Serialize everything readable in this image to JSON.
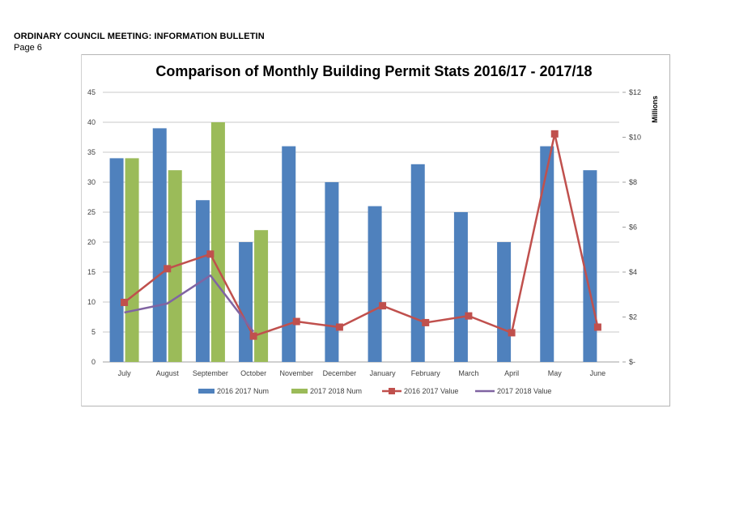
{
  "document": {
    "header": "ORDINARY COUNCIL MEETING: INFORMATION BULLETIN",
    "page": "Page 6"
  },
  "chart_data": {
    "type": "bar",
    "title": "Comparison of Monthly Building Permit Stats 2016/17 - 2017/18",
    "categories": [
      "July",
      "August",
      "September",
      "October",
      "November",
      "December",
      "January",
      "February",
      "March",
      "April",
      "May",
      "June"
    ],
    "y_left": {
      "ylim": [
        0,
        45
      ],
      "ticks": [
        0,
        5,
        10,
        15,
        20,
        25,
        30,
        35,
        40,
        45
      ],
      "tick_labels": [
        "0",
        "5",
        "10",
        "15",
        "20",
        "25",
        "30",
        "35",
        "40",
        "45"
      ]
    },
    "y_right": {
      "label": "Millions",
      "ylim": [
        0,
        12
      ],
      "ticks": [
        0,
        2,
        4,
        6,
        8,
        10,
        12
      ],
      "tick_labels": [
        "$-",
        "$2",
        "$4",
        "$6",
        "$8",
        "$10",
        "$12"
      ]
    },
    "grid": true,
    "legend_position": "bottom",
    "series": [
      {
        "name": "2016 2017 Num",
        "kind": "bar",
        "axis": "left",
        "color": "#4f81bd",
        "values": [
          34,
          39,
          27,
          20,
          36,
          30,
          26,
          33,
          25,
          20,
          36,
          32
        ]
      },
      {
        "name": "2017 2018 Num",
        "kind": "bar",
        "axis": "left",
        "color": "#9bbb59",
        "values": [
          34,
          32,
          40,
          22,
          null,
          null,
          null,
          null,
          null,
          null,
          null,
          null
        ]
      },
      {
        "name": "2016 2017 Value",
        "kind": "line",
        "axis": "right",
        "marker": "square",
        "color": "#c0504d",
        "values": [
          2.65,
          4.15,
          4.8,
          1.15,
          1.8,
          1.55,
          2.5,
          1.75,
          2.05,
          1.3,
          10.15,
          1.55
        ]
      },
      {
        "name": "2017 2018 Value",
        "kind": "line",
        "axis": "right",
        "marker": "none",
        "color": "#8064a2",
        "values": [
          2.2,
          2.6,
          3.85,
          1.35,
          null,
          null,
          null,
          null,
          null,
          null,
          null,
          null
        ]
      }
    ]
  }
}
